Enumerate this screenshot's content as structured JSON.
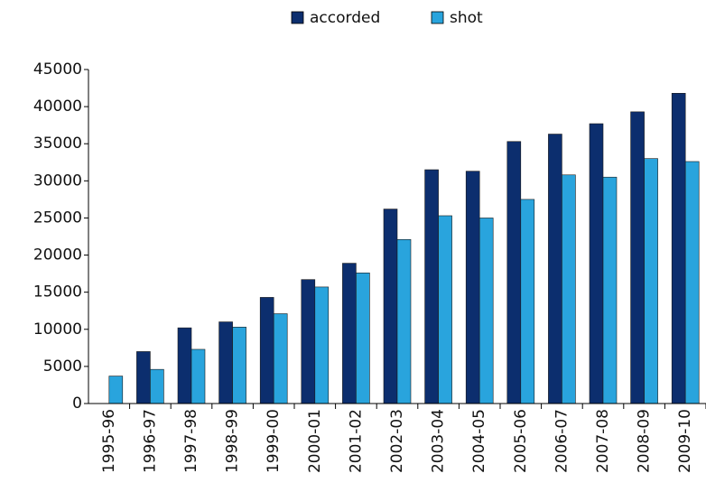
{
  "chart_data": {
    "type": "bar",
    "categories": [
      "1995-96",
      "1996-97",
      "1997-98",
      "1998-99",
      "1999-00",
      "2000-01",
      "2001-02",
      "2002-03",
      "2003-04",
      "2004-05",
      "2005-06",
      "2006-07",
      "2007-08",
      "2008-09",
      "2009-10"
    ],
    "series": [
      {
        "name": "accorded",
        "color": "#0c2e6e",
        "values": [
          0,
          7000,
          10200,
          11000,
          14300,
          16700,
          18900,
          26200,
          31500,
          31300,
          35300,
          36300,
          37700,
          39300,
          41800
        ]
      },
      {
        "name": "shot",
        "color": "#29a4dd",
        "values": [
          3700,
          4600,
          7300,
          10300,
          12100,
          15700,
          17600,
          22100,
          25300,
          25000,
          27500,
          30800,
          30500,
          33000,
          32600
        ]
      }
    ],
    "ylim": [
      0,
      45000
    ],
    "yticks": [
      0,
      5000,
      10000,
      15000,
      20000,
      25000,
      30000,
      35000,
      40000,
      45000
    ],
    "grid": false,
    "legend": "top"
  }
}
